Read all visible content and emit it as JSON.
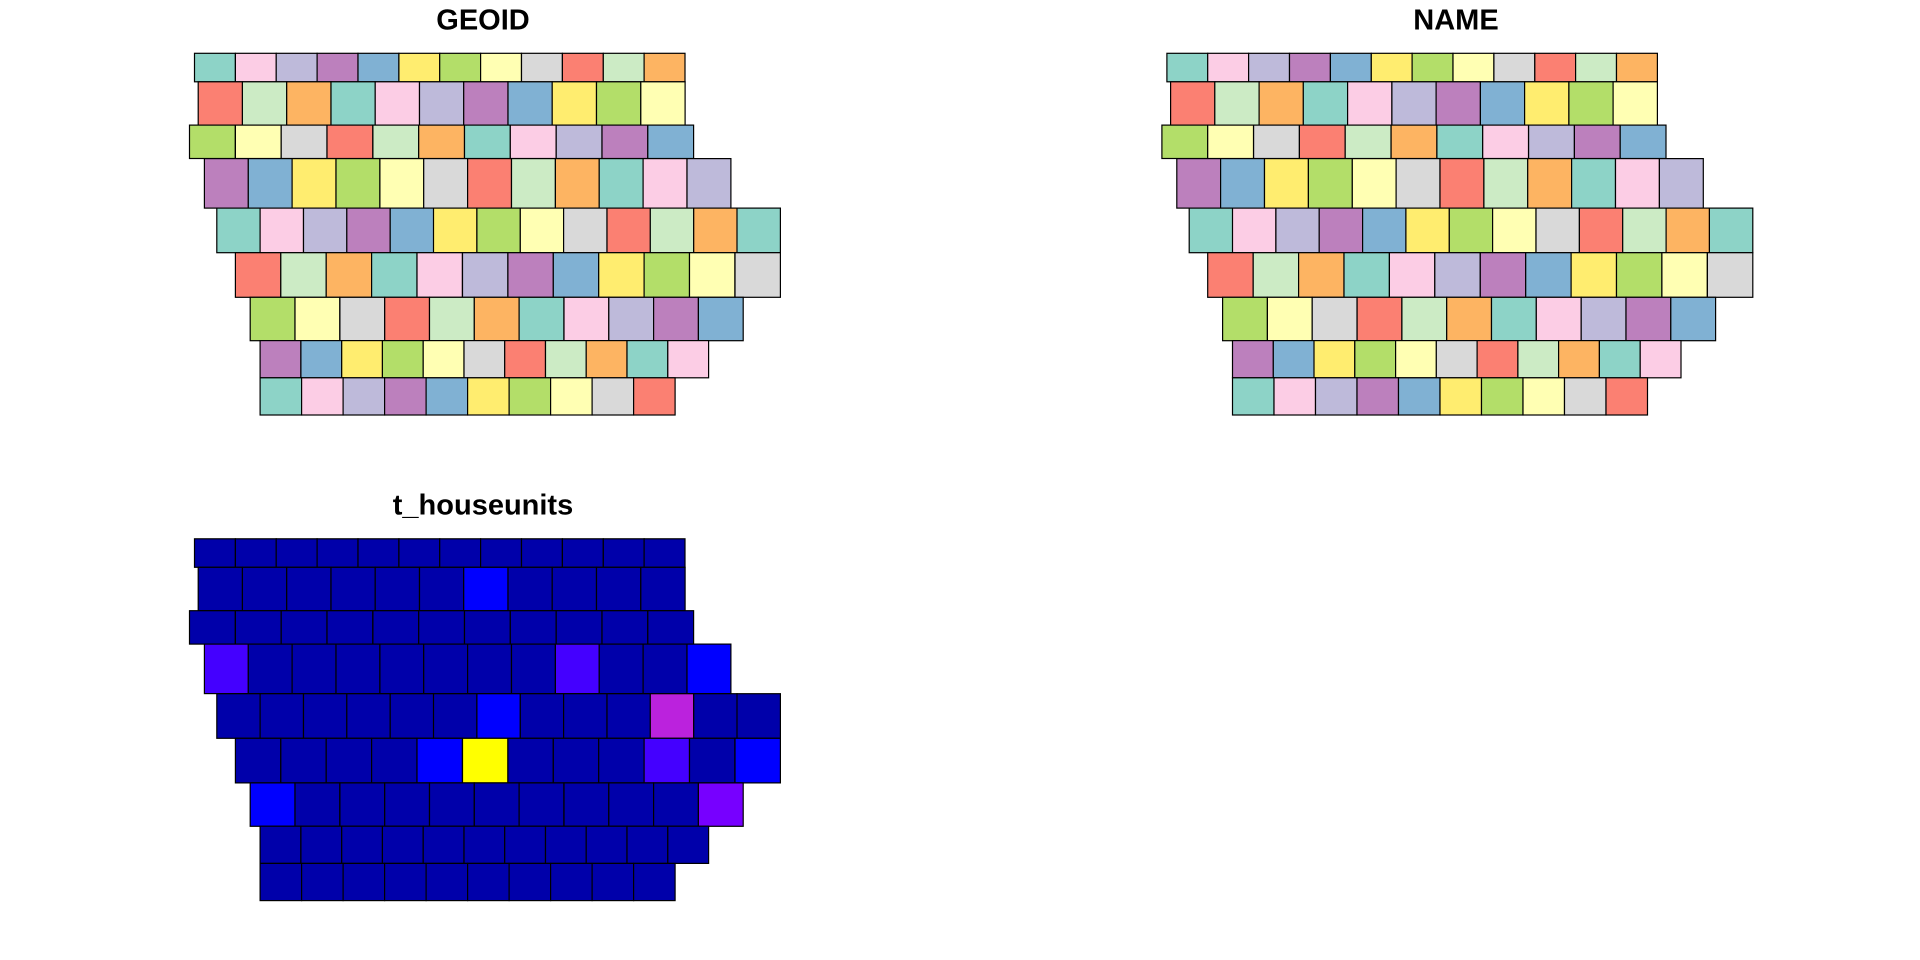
{
  "panels": [
    {
      "title": "GEOID"
    },
    {
      "title": "NAME"
    },
    {
      "title": "t_houseunits"
    }
  ]
}
